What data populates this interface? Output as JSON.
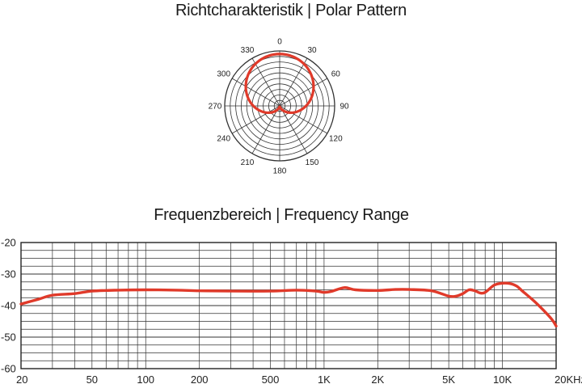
{
  "polar": {
    "title": "Richtcharakteristik | Polar Pattern",
    "angle_labels": [
      "0",
      "30",
      "60",
      "90",
      "120",
      "150",
      "180",
      "210",
      "240",
      "270",
      "300",
      "330"
    ],
    "chart_data": {
      "type": "polar",
      "pattern": "cardioid",
      "angles_deg": [
        0,
        30,
        60,
        90,
        120,
        150,
        180,
        210,
        240,
        270,
        300,
        330
      ],
      "response_relative": [
        1.0,
        0.93,
        0.75,
        0.5,
        0.25,
        0.07,
        0.0,
        0.07,
        0.25,
        0.5,
        0.75,
        0.93
      ],
      "series_color": "#e03a2a"
    }
  },
  "frequency": {
    "title": "Frequenzbereich | Frequency Range",
    "chart_data": {
      "type": "line",
      "x_scale": "log",
      "xlim": [
        20,
        20000
      ],
      "ylim": [
        -60,
        -20
      ],
      "y_ticks": [
        "-20",
        "-30",
        "-40",
        "-50",
        "-60"
      ],
      "x_tick_labels": [
        "20",
        "50",
        "100",
        "200",
        "500",
        "1K",
        "2K",
        "5K",
        "10K",
        "20KHz"
      ],
      "x_tick_values": [
        20,
        50,
        100,
        200,
        500,
        1000,
        2000,
        5000,
        10000,
        20000
      ],
      "grid": true,
      "series_color": "#e03a2a",
      "x": [
        20,
        25,
        30,
        40,
        50,
        70,
        100,
        150,
        200,
        300,
        500,
        700,
        900,
        1000,
        1100,
        1300,
        1500,
        2000,
        2500,
        3000,
        4000,
        5000,
        5500,
        6000,
        6500,
        7000,
        7500,
        8000,
        9000,
        10000,
        11000,
        12000,
        13000,
        15000,
        17000,
        19000,
        20000
      ],
      "y": [
        -39.5,
        -38,
        -36.7,
        -36.2,
        -35.4,
        -35.1,
        -35.0,
        -35.1,
        -35.3,
        -35.4,
        -35.4,
        -35.1,
        -35.4,
        -35.8,
        -35.5,
        -34.3,
        -35.0,
        -35.2,
        -34.9,
        -34.9,
        -35.3,
        -37.0,
        -37.0,
        -36.2,
        -35.0,
        -35.3,
        -36.0,
        -35.8,
        -33.5,
        -32.9,
        -33.0,
        -33.8,
        -35.5,
        -38.5,
        -41.5,
        -44.5,
        -46.5
      ]
    }
  }
}
